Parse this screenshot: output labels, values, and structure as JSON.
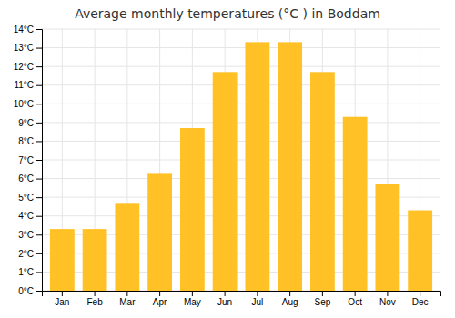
{
  "chart_data": {
    "type": "bar",
    "title": "Average monthly temperatures (°C ) in Boddam",
    "categories": [
      "Jan",
      "Feb",
      "Mar",
      "Apr",
      "May",
      "Jun",
      "Jul",
      "Aug",
      "Sep",
      "Oct",
      "Nov",
      "Dec"
    ],
    "values": [
      3.3,
      3.3,
      4.7,
      6.3,
      8.7,
      11.7,
      13.3,
      13.3,
      11.7,
      9.3,
      5.7,
      4.3
    ],
    "color": "#FFC125",
    "ylim": [
      0,
      14
    ],
    "yticks": [
      {
        "value": 0,
        "label": "0°C"
      },
      {
        "value": 1,
        "label": "1°C"
      },
      {
        "value": 2,
        "label": "2°C"
      },
      {
        "value": 3,
        "label": "3°C"
      },
      {
        "value": 4,
        "label": "4°C"
      },
      {
        "value": 5,
        "label": "5°C"
      },
      {
        "value": 6,
        "label": "6°C"
      },
      {
        "value": 7,
        "label": "7°C"
      },
      {
        "value": 8,
        "label": "8°C"
      },
      {
        "value": 9,
        "label": "9°C"
      },
      {
        "value": 10,
        "label": "10°C"
      },
      {
        "value": 11,
        "label": "11°C"
      },
      {
        "value": 12,
        "label": "12°C"
      },
      {
        "value": 13,
        "label": "13°C"
      },
      {
        "value": 14,
        "label": "14°C"
      }
    ],
    "grid": true
  }
}
